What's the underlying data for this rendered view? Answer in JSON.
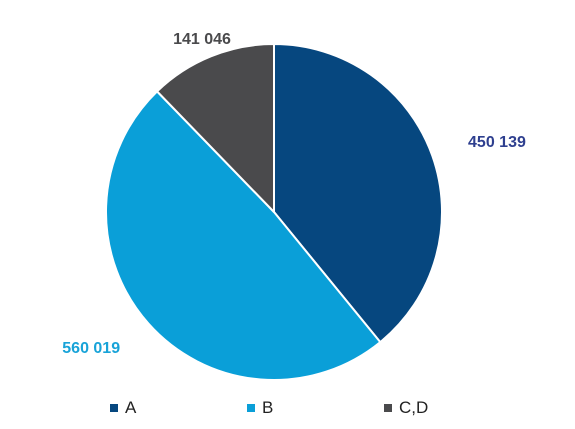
{
  "chart_data": {
    "type": "pie",
    "categories": [
      "A",
      "B",
      "C,D"
    ],
    "values": [
      450139,
      560019,
      141046
    ],
    "value_labels": [
      "450 139",
      "560 019",
      "141 046"
    ],
    "colors": [
      "#06477f",
      "#0a9fd8",
      "#4a4a4c"
    ],
    "label_colors": [
      "#2e3f8f",
      "#18a3d8",
      "#4a4a4c"
    ],
    "start_angle": "12 o'clock",
    "direction": "clockwise",
    "legend": {
      "position": "bottom",
      "items": [
        "A",
        "B",
        "C,D"
      ]
    }
  }
}
